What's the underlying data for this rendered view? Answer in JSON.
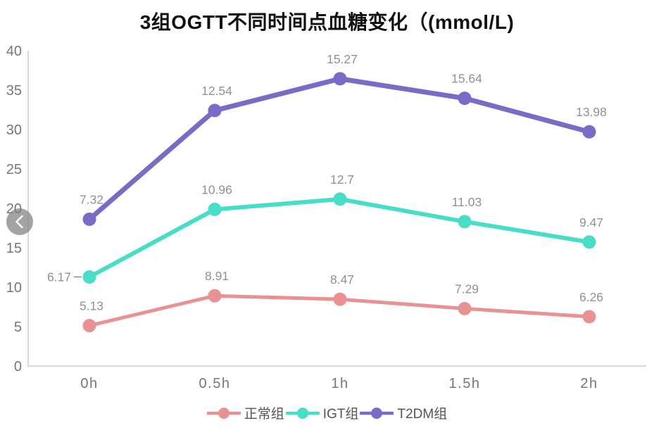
{
  "title": "3组OGTT不同时间点血糖变化（(mmol/L)",
  "carousel": {
    "prev_button": "previous"
  },
  "chart_data": {
    "type": "line",
    "stacked": true,
    "title": "3组OGTT不同时间点血糖变化（(mmol/L)",
    "categories": [
      "0h",
      "0.5h",
      "1h",
      "1.5h",
      "2h"
    ],
    "series": [
      {
        "name": "正常组",
        "color": "#e99293",
        "line_width": 5,
        "values": [
          5.13,
          8.91,
          8.47,
          7.29,
          6.26
        ],
        "label_sides": [
          "above",
          "above",
          "above",
          "above",
          "above"
        ]
      },
      {
        "name": "IGT组",
        "color": "#47ddc6",
        "line_width": 6,
        "values": [
          6.17,
          10.96,
          12.7,
          11.03,
          9.47
        ],
        "label_sides": [
          "left",
          "above",
          "above",
          "above",
          "above"
        ]
      },
      {
        "name": "T2DM组",
        "color": "#7a6bc6",
        "line_width": 7,
        "values": [
          7.32,
          12.54,
          15.27,
          15.64,
          13.98
        ],
        "label_sides": [
          "above",
          "above",
          "above",
          "above",
          "above"
        ]
      }
    ],
    "y_ticks": [
      0,
      5,
      10,
      15,
      20,
      25,
      30,
      35,
      40
    ],
    "ylim": [
      0,
      40
    ],
    "grid": false,
    "legend_position": "bottom",
    "legend": [
      "正常组",
      "IGT组",
      "T2DM组"
    ],
    "colors": {
      "axis_line": "#d9d9d9",
      "tick_label": "#73777d",
      "data_label": "#8d9198",
      "legend_label": "#515458",
      "title": "#111111",
      "background": "#ffffff",
      "nav_button": "rgba(128,128,128,0.72)",
      "nav_chevron": "#ffffff"
    }
  }
}
